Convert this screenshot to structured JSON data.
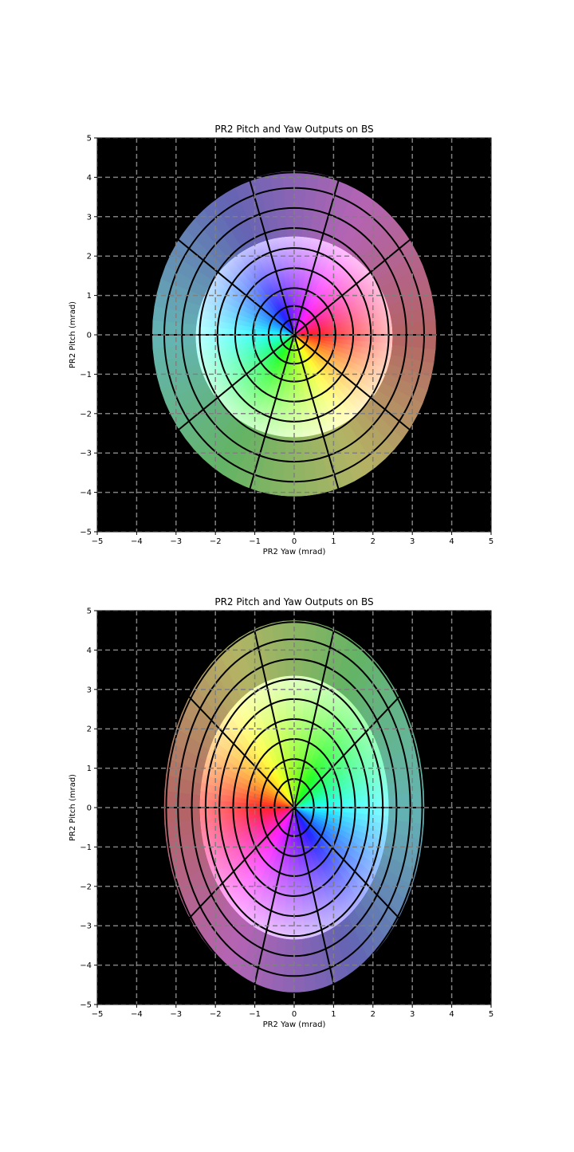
{
  "chart_data": [
    {
      "type": "scatter",
      "title": "PR2 Pitch and Yaw Outputs on BS",
      "xlabel": "PR2 Yaw (mrad)",
      "ylabel": "PR2 Pitch (mrad)",
      "xlim": [
        -5,
        5
      ],
      "ylim": [
        -5,
        5
      ],
      "xticks": [
        "−5",
        "−4",
        "−3",
        "−2",
        "−1",
        "0",
        "1",
        "2",
        "3",
        "4",
        "5"
      ],
      "yticks": [
        "5",
        "4",
        "3",
        "2",
        "1",
        "0",
        "−1",
        "−2",
        "−3",
        "−4",
        "−5"
      ],
      "grid": true,
      "background": "#000000",
      "grid_color": "#808080",
      "hue_rotation_deg": 0,
      "inner_region": {
        "rx": 2.5,
        "ry": 2.55,
        "cy": -0.05
      },
      "outer_region": {
        "x_right": 3.6,
        "x_left": -3.6,
        "y_top": 4.15,
        "y_bottom": -4.1
      },
      "rings": [
        0.35,
        0.65,
        1.05,
        1.5,
        1.95,
        2.4,
        2.85,
        3.3,
        3.65
      ],
      "ring_y_scale": 1.13,
      "spokes_deg": [
        0,
        36,
        72,
        108,
        144,
        180,
        216,
        252,
        288,
        324
      ]
    },
    {
      "type": "scatter",
      "title": "PR2 Pitch and Yaw Outputs on BS",
      "xlabel": "PR2 Yaw (mrad)",
      "ylabel": "PR2 Pitch (mrad)",
      "xlim": [
        -5,
        5
      ],
      "ylim": [
        -5,
        5
      ],
      "xticks": [
        "−5",
        "−4",
        "−3",
        "−2",
        "−1",
        "0",
        "1",
        "2",
        "3",
        "4",
        "5"
      ],
      "yticks": [
        "5",
        "4",
        "3",
        "2",
        "1",
        "0",
        "−1",
        "−2",
        "−3",
        "−4",
        "−5"
      ],
      "grid": true,
      "background": "#000000",
      "grid_color": "#808080",
      "hue_rotation_deg": 180,
      "inner_region": {
        "rx": 2.4,
        "ry": 3.35,
        "cy": 0.0
      },
      "outer_region": {
        "x_right": 3.3,
        "x_left": -3.3,
        "y_top": 4.75,
        "y_bottom": -4.7
      },
      "rings": [
        0.5,
        0.85,
        1.2,
        1.55,
        1.9,
        2.25,
        2.6,
        2.95,
        3.25
      ],
      "ring_y_scale": 1.45,
      "spokes_deg": [
        0,
        36,
        72,
        108,
        144,
        180,
        216,
        252,
        288,
        324
      ]
    }
  ]
}
